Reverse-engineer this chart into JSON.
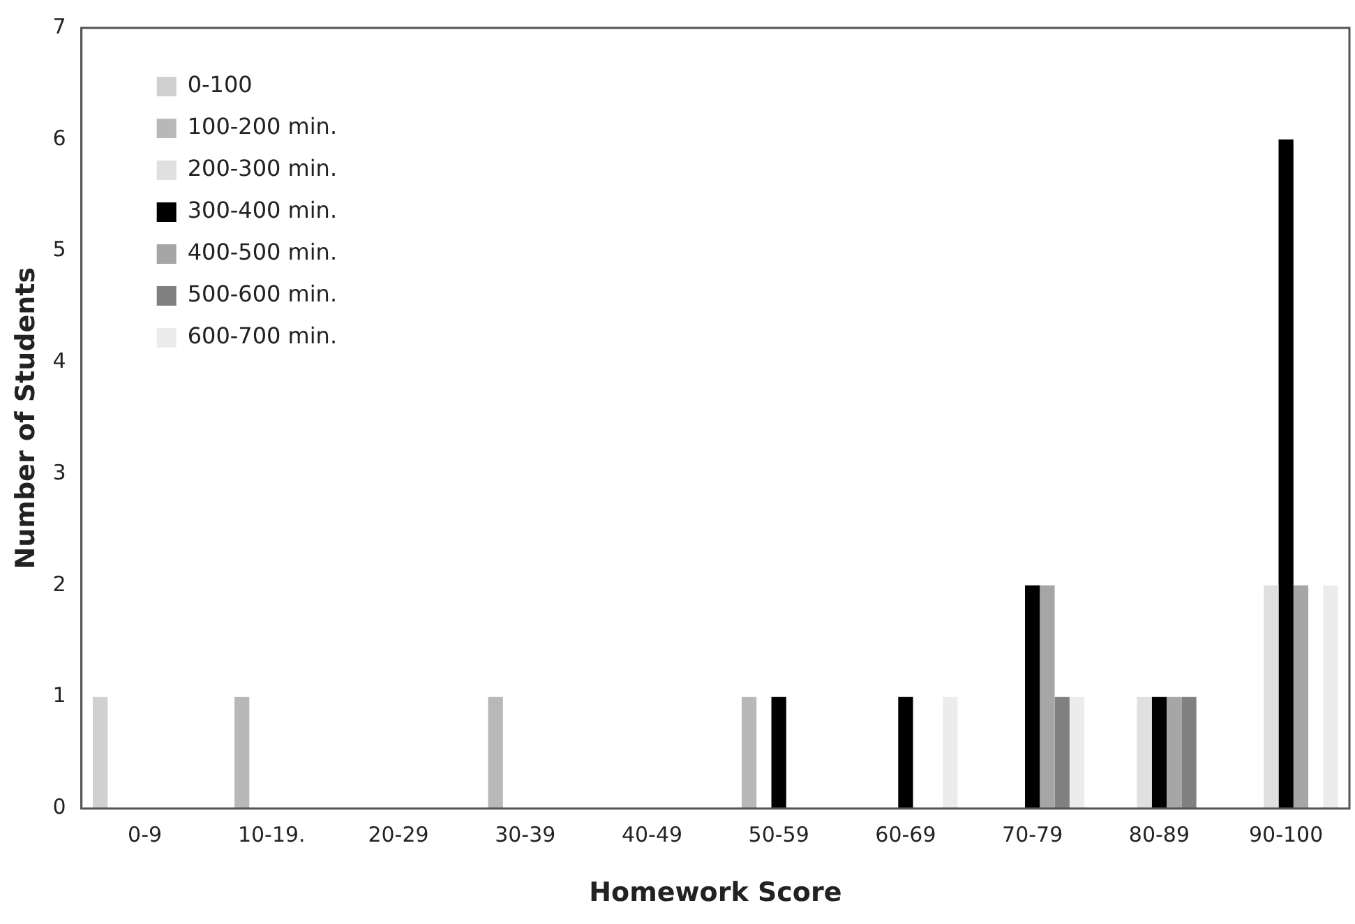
{
  "chart_data": {
    "type": "bar",
    "xlabel": "Homework Score",
    "ylabel": "Number of Students",
    "categories": [
      "0-9",
      "10-19.",
      "20-29",
      "30-39",
      "40-49",
      "50-59",
      "60-69",
      "70-79",
      "80-89",
      "90-100"
    ],
    "series": [
      {
        "name": "0-100",
        "color": "#d0d0d0",
        "values": [
          1,
          0,
          0,
          0,
          0,
          0,
          0,
          0,
          0,
          0
        ]
      },
      {
        "name": "100-200 min.",
        "color": "#b8b8b8",
        "values": [
          0,
          1,
          0,
          1,
          0,
          1,
          0,
          0,
          0,
          0
        ]
      },
      {
        "name": "200-300 min.",
        "color": "#e0e0e0",
        "values": [
          0,
          0,
          0,
          0,
          0,
          0,
          0,
          0,
          1,
          2
        ]
      },
      {
        "name": "300-400 min.",
        "color": "#000000",
        "values": [
          0,
          0,
          0,
          0,
          0,
          1,
          1,
          2,
          1,
          6
        ]
      },
      {
        "name": "400-500 min.",
        "color": "#a6a6a6",
        "values": [
          0,
          0,
          0,
          0,
          0,
          0,
          0,
          2,
          1,
          2
        ]
      },
      {
        "name": "500-600 min.",
        "color": "#808080",
        "values": [
          0,
          0,
          0,
          0,
          0,
          0,
          0,
          1,
          1,
          0
        ]
      },
      {
        "name": "600-700 min.",
        "color": "#ececec",
        "values": [
          0,
          0,
          0,
          0,
          0,
          0,
          1,
          1,
          0,
          2
        ]
      }
    ],
    "ylim": [
      0,
      7
    ],
    "yticks": [
      0,
      1,
      2,
      3,
      4,
      5,
      6,
      7
    ],
    "grid": false,
    "legend": "top left"
  }
}
